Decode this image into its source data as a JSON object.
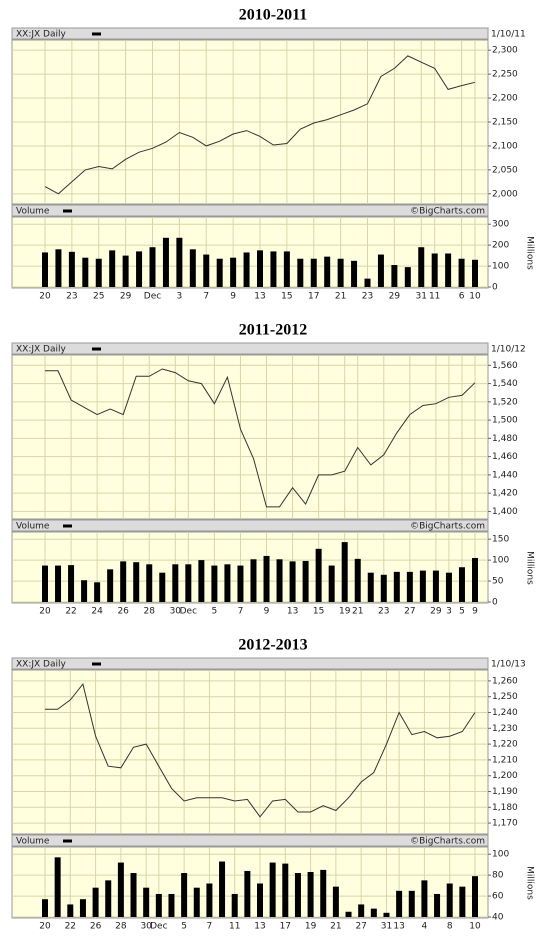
{
  "chart_data": [
    {
      "type": "stock",
      "title": "2010-2011",
      "source": "©BigCharts.com",
      "grid": true,
      "categories": [
        "20",
        null,
        "23",
        null,
        "25",
        null,
        "29",
        null,
        "Dec",
        null,
        "3",
        null,
        "7",
        null,
        "9",
        null,
        "13",
        null,
        "15",
        null,
        "17",
        null,
        "21",
        null,
        "23",
        null,
        "29",
        null,
        "31",
        "11",
        null,
        "6",
        "10"
      ],
      "price": {
        "label": "XX:JX Daily",
        "date": "1/10/11",
        "color": "#333333",
        "values": [
          2015,
          2000,
          2025,
          2050,
          2057,
          2052,
          2072,
          2087,
          2095,
          2108,
          2128,
          2118,
          2100,
          2110,
          2125,
          2132,
          2120,
          2102,
          2105,
          2135,
          2148,
          2155,
          2165,
          2175,
          2188,
          2245,
          2262,
          2288,
          2275,
          2262,
          2218,
          2226,
          2233
        ],
        "ylim": [
          1985,
          2315
        ],
        "yticks": [
          {
            "value": 2000,
            "label": "2,000"
          },
          {
            "value": 2050,
            "label": "2,050"
          },
          {
            "value": 2100,
            "label": "2,100"
          },
          {
            "value": 2150,
            "label": "2,150"
          },
          {
            "value": 2200,
            "label": "2,200"
          },
          {
            "value": 2250,
            "label": "2,250"
          },
          {
            "value": 2300,
            "label": "2,300"
          }
        ]
      },
      "volume": {
        "label": "Volume",
        "axis_label": "Millions",
        "color": "#000000",
        "values": [
          165,
          180,
          168,
          140,
          135,
          175,
          150,
          170,
          190,
          235,
          235,
          180,
          155,
          135,
          140,
          165,
          175,
          170,
          170,
          135,
          135,
          145,
          135,
          125,
          40,
          155,
          105,
          95,
          190,
          160,
          160,
          135,
          130
        ],
        "ylim": [
          0,
          320
        ],
        "yticks": [
          0,
          100,
          200,
          300
        ]
      }
    },
    {
      "type": "stock",
      "title": "2011-2012",
      "source": "©BigCharts.com",
      "grid": true,
      "categories": [
        "20",
        null,
        "22",
        null,
        "24",
        null,
        "26",
        null,
        "28",
        null,
        "30",
        "Dec",
        null,
        "5",
        null,
        "7",
        null,
        "9",
        null,
        "13",
        null,
        "15",
        null,
        "19",
        "21",
        null,
        "23",
        null,
        "27",
        null,
        "29",
        "3",
        "5",
        "9"
      ],
      "price": {
        "label": "XX:JX Daily",
        "date": "1/10/12",
        "color": "#333333",
        "values": [
          1554,
          1554,
          1522,
          1514,
          1506,
          1512,
          1506,
          1548,
          1548,
          1556,
          1552,
          1543,
          1540,
          1518,
          1547,
          1490,
          1458,
          1405,
          1405,
          1426,
          1408,
          1440,
          1440,
          1444,
          1470,
          1451,
          1462,
          1486,
          1506,
          1516,
          1518,
          1525,
          1527,
          1541
        ],
        "ylim": [
          1395,
          1568
        ],
        "yticks": [
          {
            "value": 1400,
            "label": "1,400"
          },
          {
            "value": 1420,
            "label": "1,420"
          },
          {
            "value": 1440,
            "label": "1,440"
          },
          {
            "value": 1460,
            "label": "1,460"
          },
          {
            "value": 1480,
            "label": "1,480"
          },
          {
            "value": 1500,
            "label": "1,500"
          },
          {
            "value": 1520,
            "label": "1,520"
          },
          {
            "value": 1540,
            "label": "1,540"
          },
          {
            "value": 1560,
            "label": "1,560"
          }
        ]
      },
      "volume": {
        "label": "Volume",
        "axis_label": "Millions",
        "color": "#000000",
        "values": [
          87,
          87,
          88,
          52,
          47,
          78,
          97,
          95,
          90,
          70,
          90,
          90,
          100,
          87,
          90,
          87,
          102,
          110,
          102,
          97,
          98,
          127,
          87,
          143,
          103,
          70,
          65,
          72,
          72,
          75,
          75,
          70,
          83,
          105
        ],
        "ylim": [
          0,
          160
        ],
        "yticks": [
          0,
          50,
          100,
          150
        ]
      }
    },
    {
      "type": "stock",
      "title": "2012-2013",
      "source": "©BigCharts.com",
      "grid": true,
      "categories": [
        "20",
        null,
        "22",
        null,
        "26",
        null,
        "28",
        null,
        "30",
        "Dec",
        null,
        "5",
        null,
        "7",
        null,
        "11",
        null,
        "13",
        null,
        "17",
        null,
        "19",
        null,
        "21",
        null,
        "27",
        null,
        "31",
        "13",
        null,
        "4",
        null,
        "8",
        null,
        "10"
      ],
      "price": {
        "label": "XX:JX Daily",
        "date": "1/10/13",
        "color": "#333333",
        "values": [
          1242,
          1242,
          1248,
          1258,
          1225,
          1206,
          1205,
          1218,
          1220,
          1206,
          1192,
          1184,
          1186,
          1186,
          1186,
          1184,
          1185,
          1174,
          1184,
          1185,
          1177,
          1177,
          1181,
          1178,
          1186,
          1196,
          1202,
          1220,
          1240,
          1226,
          1228,
          1224,
          1225,
          1228,
          1240
        ],
        "ylim": [
          1165,
          1265
        ],
        "yticks": [
          {
            "value": 1170,
            "label": "1,170"
          },
          {
            "value": 1180,
            "label": "1,180"
          },
          {
            "value": 1190,
            "label": "1,190"
          },
          {
            "value": 1200,
            "label": "1,200"
          },
          {
            "value": 1210,
            "label": "1,210"
          },
          {
            "value": 1220,
            "label": "1,220"
          },
          {
            "value": 1230,
            "label": "1,230"
          },
          {
            "value": 1240,
            "label": "1,240"
          },
          {
            "value": 1250,
            "label": "1,250"
          },
          {
            "value": 1260,
            "label": "1,260"
          }
        ]
      },
      "volume": {
        "label": "Volume",
        "axis_label": "Millions",
        "color": "#000000",
        "values": [
          57,
          97,
          52,
          57,
          68,
          75,
          92,
          82,
          68,
          62,
          62,
          82,
          68,
          72,
          93,
          62,
          84,
          72,
          92,
          91,
          82,
          83,
          85,
          69,
          45,
          52,
          48,
          44,
          65,
          65,
          75,
          62,
          72,
          69,
          79
        ],
        "ylim": [
          40,
          104
        ],
        "yticks": [
          40,
          60,
          80,
          100
        ]
      }
    }
  ]
}
